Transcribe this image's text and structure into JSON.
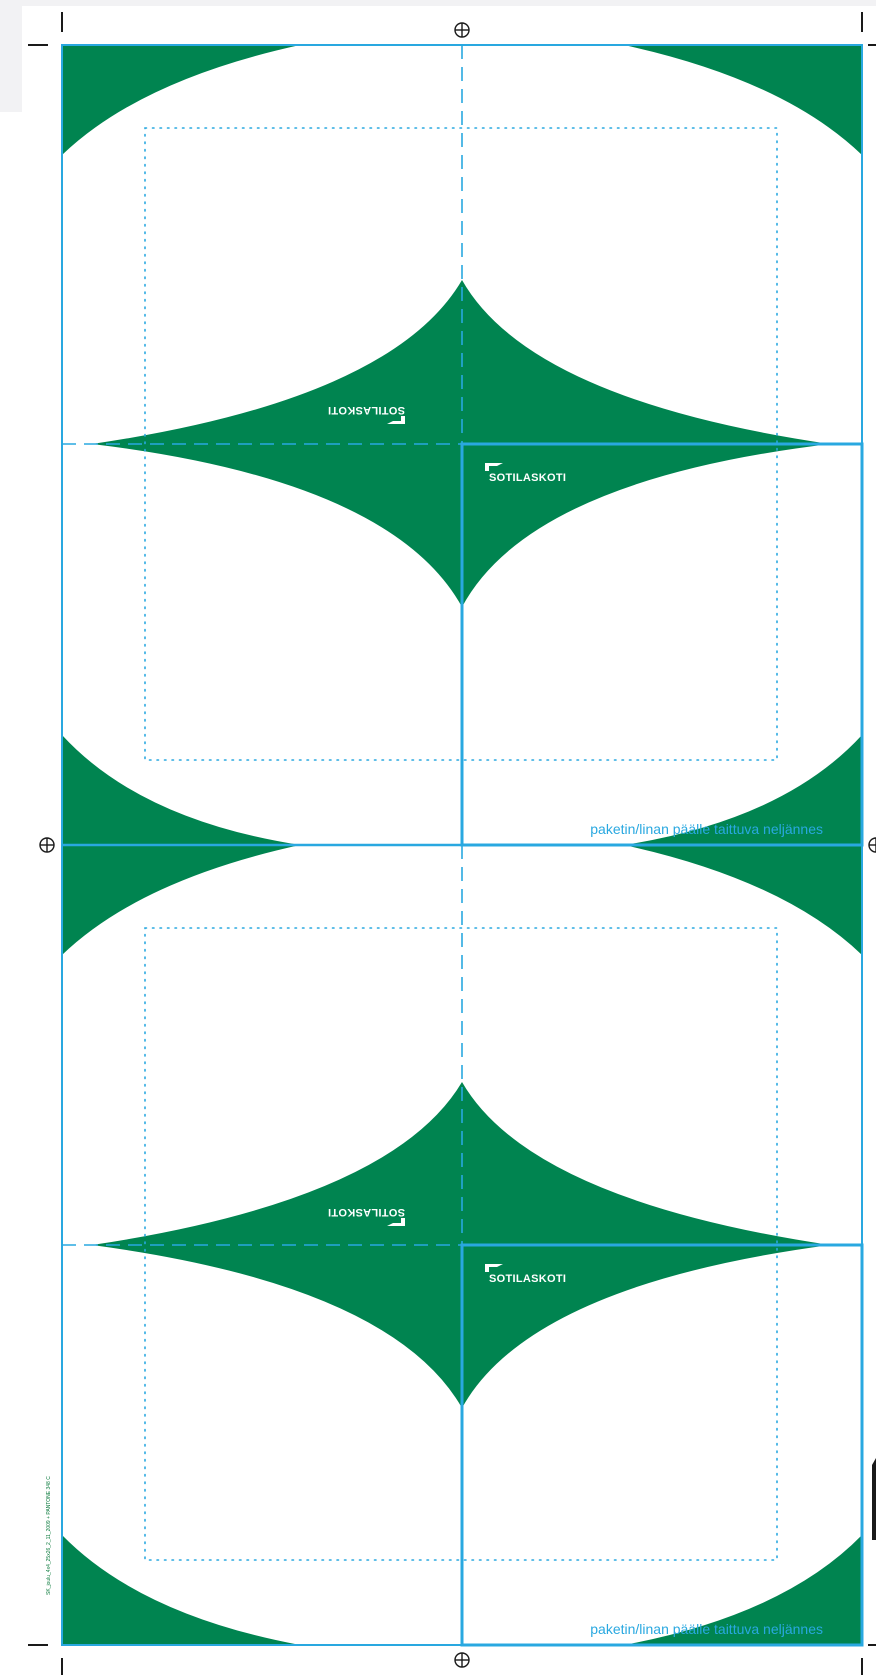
{
  "document": {
    "type": "die-cut wrapping sheet",
    "brand_logo": "SOTILASKOTI",
    "panels": [
      {
        "fold_caption": "paketin/linan päälle taittuva neljännes"
      },
      {
        "fold_caption": "paketin/linan päälle taittuva neljännes"
      }
    ],
    "spec_line": "SK_joulu_4x4_25x26_2_11_2009 + PANTONE 348 C"
  },
  "colors": {
    "brand_green": "#008450",
    "guide_blue": "#29a8e0",
    "registration": "#1a1a1a"
  }
}
